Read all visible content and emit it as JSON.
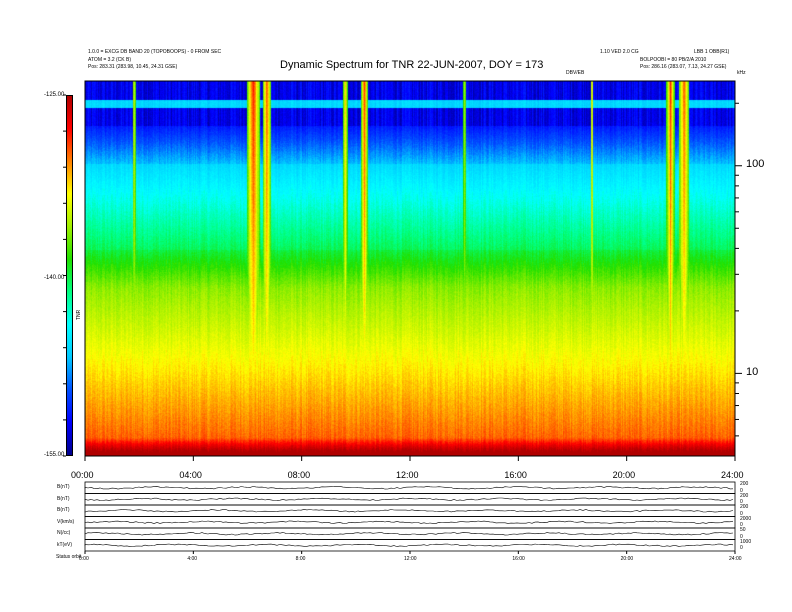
{
  "header": {
    "left_line1": "1.0.0 = EXCG DB BAND 20 (TOPOBOOPS) - 0 FROM SEC",
    "left_line2": "ATOM = 3.2 (CK B)",
    "left_line3": "Pos:   283.31 (283.98, 10.45, 24.31 GSE)",
    "right_line1": "1.10 VED 2.0 CG",
    "right_line1b": "LBB 1 OBB(R1)",
    "right_line2": "BOLPOOBI = 80 PB/2/A 2010",
    "right_line3": "Pos:   286.16 (283.07, 7.13, 24.27 GSE)",
    "mid_small": "DBV/EB",
    "corner_unit": "kHz"
  },
  "chart_data": {
    "type": "heatmap",
    "title": "Dynamic Spectrum for TNR 22-JUN-2007, DOY = 173",
    "x_ticks": [
      "00:00",
      "04:00",
      "08:00",
      "12:00",
      "16:00",
      "20:00",
      "24:00"
    ],
    "x_range_hours": [
      0,
      24
    ],
    "y_scale": "log",
    "y_ticks": [
      "100",
      "10"
    ],
    "y_range_khz": [
      4,
      256
    ],
    "colorbar": {
      "label": "TNR",
      "ticks": [
        "-125.00",
        "-140.00",
        "-155.00"
      ],
      "range": [
        -155,
        -125
      ],
      "colors": [
        "#00008c",
        "#0000ff",
        "#0050ff",
        "#00c8ff",
        "#00ffff",
        "#00ff80",
        "#20e000",
        "#a0f000",
        "#ffff00",
        "#ff8000",
        "#ff0000",
        "#b00000"
      ]
    },
    "lower_panels": {
      "labels": [
        "B(nT)",
        "B(nT)",
        "B(nT)",
        "V(km/s)",
        "N(/cc)",
        "kT(eV)"
      ],
      "right_ticks": [
        [
          "200",
          "0"
        ],
        [
          "200",
          "0"
        ],
        [
          "200",
          "0"
        ],
        [
          "2000",
          "0"
        ],
        [
          "50",
          "0"
        ],
        [
          "1000",
          "0"
        ]
      ],
      "x_ticks": [
        "0:00",
        "4:00",
        "8:00",
        "12:00",
        "16:00",
        "20:00",
        "24:00"
      ],
      "footer": "Status   orbit"
    }
  }
}
